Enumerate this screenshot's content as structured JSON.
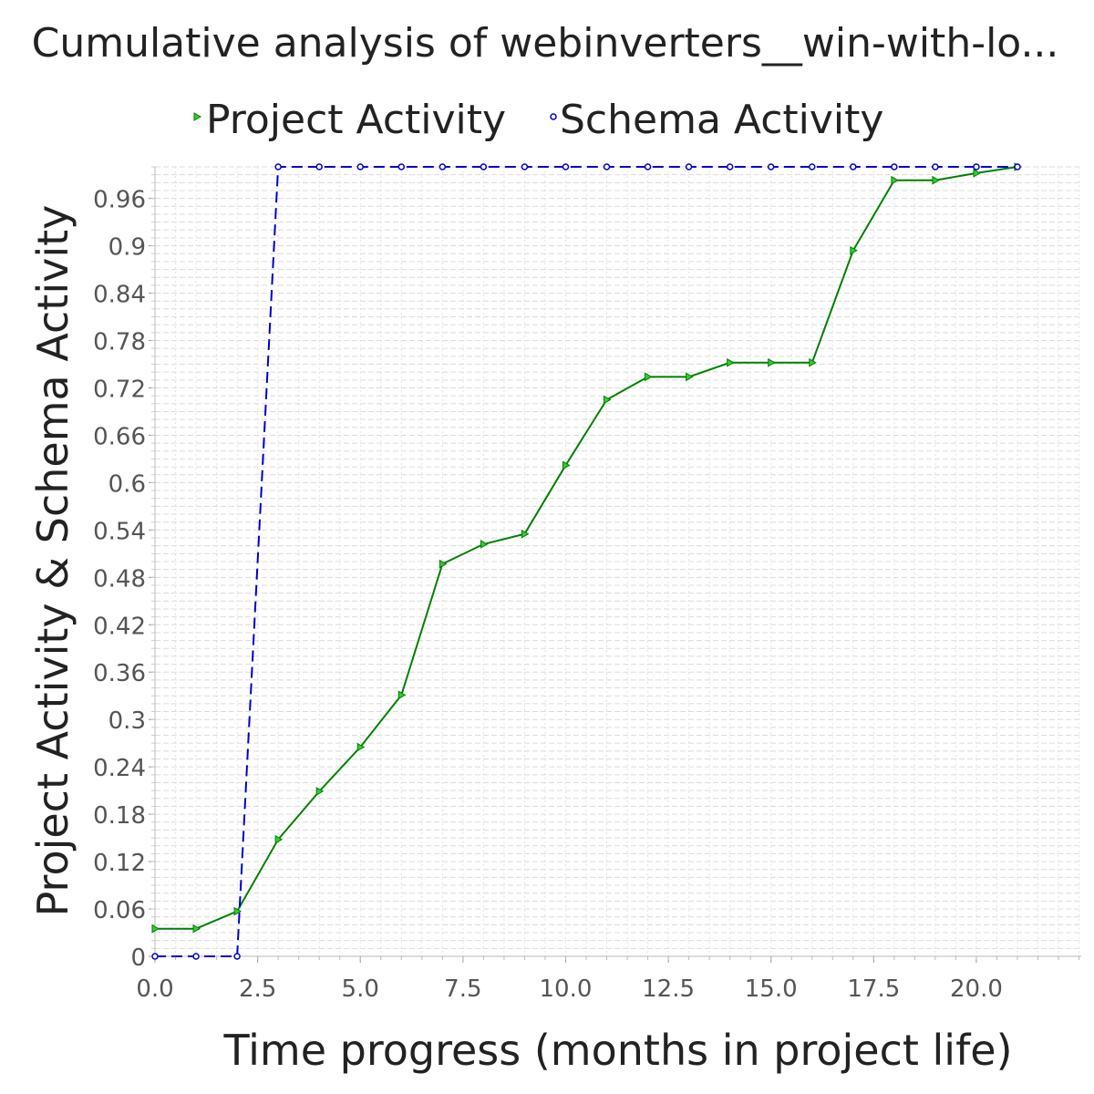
{
  "chart_data": {
    "type": "line",
    "title": "Cumulative analysis of webinverters__win-with-lo...",
    "xlabel": "Time progress (months in project life)",
    "ylabel": "Project Activity & Schema Activity",
    "xlim": [
      0,
      22.5
    ],
    "ylim": [
      0,
      1.0
    ],
    "xticks": [
      "0.0",
      "2.5",
      "5.0",
      "7.5",
      "10.0",
      "12.5",
      "15.0",
      "17.5",
      "20.0"
    ],
    "yticks": [
      "0",
      "0.06",
      "0.12",
      "0.18",
      "0.24",
      "0.3",
      "0.36",
      "0.42",
      "0.48",
      "0.54",
      "0.6",
      "0.66",
      "0.72",
      "0.78",
      "0.84",
      "0.9",
      "0.96"
    ],
    "grid": true,
    "legend_position": "top",
    "series": [
      {
        "name": "Project Activity",
        "color": "#008000",
        "marker": "triangle-right",
        "dash": "solid",
        "x": [
          0,
          1,
          2,
          3,
          4,
          5,
          6,
          7,
          8,
          9,
          10,
          11,
          12,
          13,
          14,
          15,
          16,
          17,
          18,
          19,
          20,
          21
        ],
        "y": [
          0.035,
          0.035,
          0.057,
          0.148,
          0.209,
          0.265,
          0.331,
          0.497,
          0.522,
          0.535,
          0.622,
          0.705,
          0.734,
          0.734,
          0.752,
          0.752,
          0.752,
          0.894,
          0.983,
          0.983,
          0.992,
          1.0
        ]
      },
      {
        "name": "Schema Activity",
        "color": "#0000cc",
        "marker": "circle",
        "dash": "dashed",
        "x": [
          0,
          1,
          2,
          3,
          4,
          5,
          6,
          7,
          8,
          9,
          10,
          11,
          12,
          13,
          14,
          15,
          16,
          17,
          18,
          19,
          20,
          21
        ],
        "y": [
          0,
          0,
          0,
          1.0,
          1.0,
          1.0,
          1.0,
          1.0,
          1.0,
          1.0,
          1.0,
          1.0,
          1.0,
          1.0,
          1.0,
          1.0,
          1.0,
          1.0,
          1.0,
          1.0,
          1.0,
          1.0
        ]
      }
    ]
  }
}
